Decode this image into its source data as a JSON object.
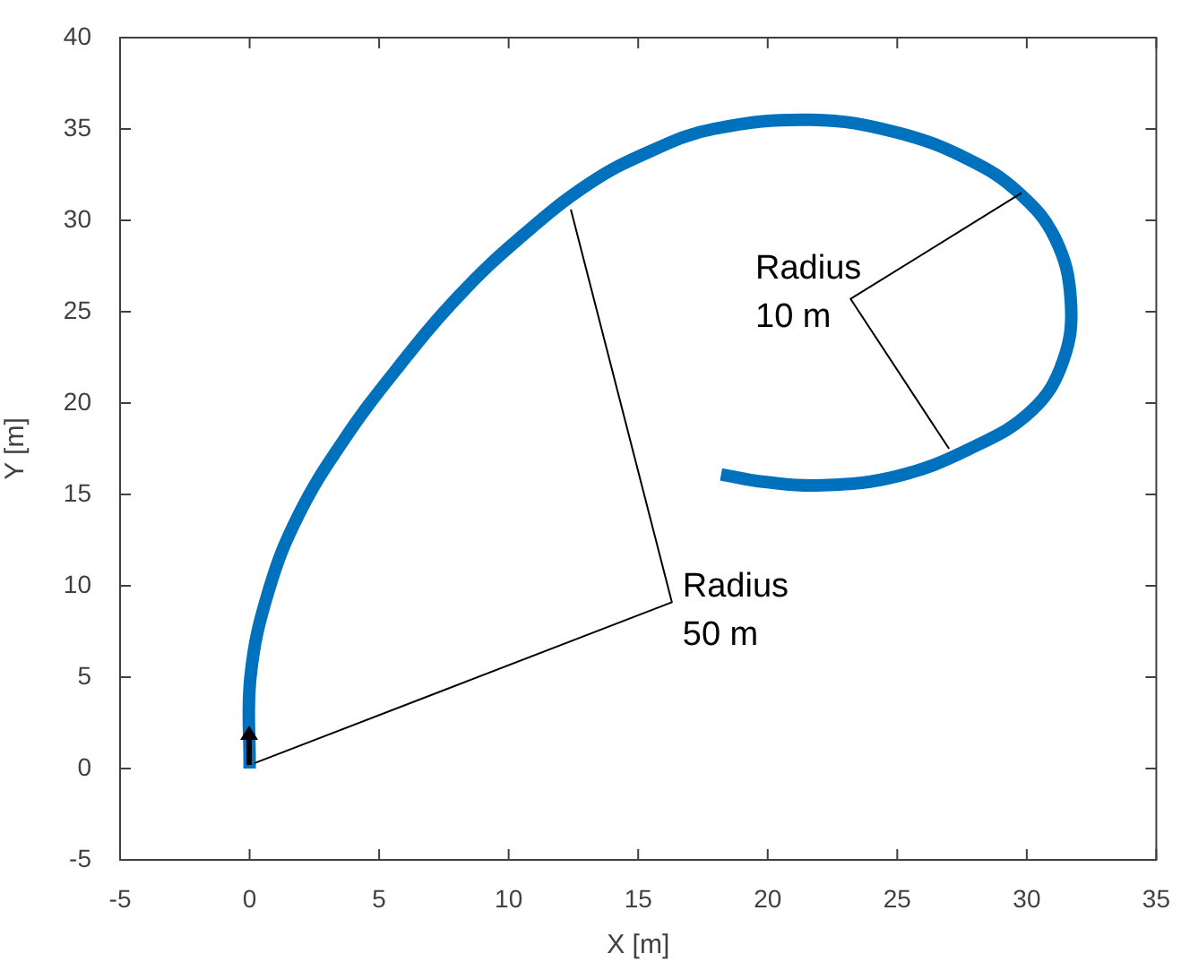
{
  "chart_data": {
    "type": "line",
    "xlabel": "X [m]",
    "ylabel": "Y [m]",
    "xlim": [
      -5,
      35
    ],
    "xticks": [
      -5,
      0,
      5,
      10,
      15,
      20,
      25,
      30,
      35
    ],
    "ylim": [
      -5,
      40
    ],
    "yticks": [
      -5,
      0,
      5,
      10,
      15,
      20,
      25,
      30,
      35,
      40
    ],
    "grid": false,
    "legend": false,
    "marker": "none",
    "line_style": "solid",
    "series": [
      {
        "color": "#0072bd",
        "x": [
          0,
          0.04,
          0.75,
          1.9,
          3.6,
          5.7,
          8.1,
          10.4,
          13.1,
          15.5,
          17.9,
          21.7,
          25.0,
          27.8,
          29.7,
          31.1,
          31.7,
          31.4,
          30.2,
          27.8,
          25.0,
          22.1,
          19.8,
          18.2
        ],
        "values": [
          0,
          5.1,
          9.8,
          13.9,
          17.9,
          21.9,
          25.9,
          29.0,
          32.0,
          33.8,
          35.0,
          35.5,
          34.8,
          33.3,
          31.5,
          29.0,
          25.6,
          22.3,
          19.6,
          17.5,
          16.0,
          15.5,
          15.7,
          16.1
        ]
      },
      {
        "color": "#000000",
        "x": [
          0.2,
          16.3,
          12.4
        ],
        "values": [
          0.3,
          9.1,
          30.6
        ]
      },
      {
        "color": "#000000",
        "x": [
          29.8,
          23.2,
          27.0
        ],
        "values": [
          31.5,
          25.7,
          17.5
        ]
      }
    ],
    "annotations": [
      {
        "text": "Radius\n10 m",
        "x": 23.2,
        "y": 25.7
      },
      {
        "text": "Radius\n50 m",
        "x": 16.3,
        "y": 9.1
      }
    ]
  }
}
